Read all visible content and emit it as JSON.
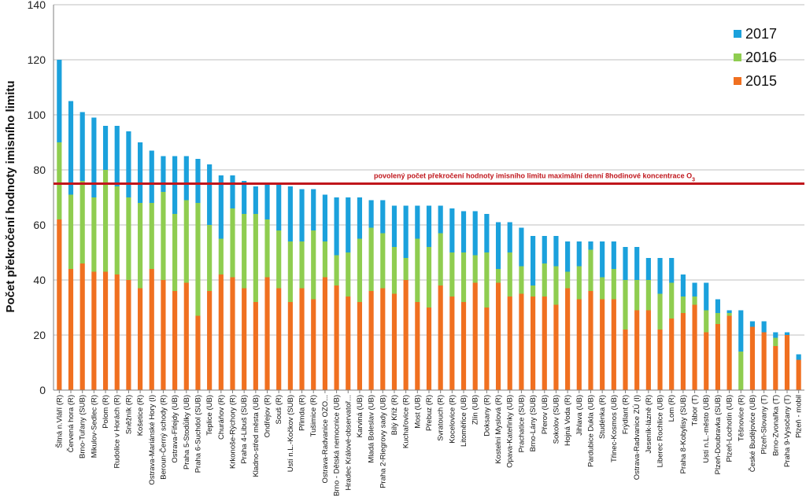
{
  "chart_data": {
    "type": "bar",
    "stacked": true,
    "ylabel": "Počet překročení hodnoty imisního limitu",
    "ylim": [
      0,
      140
    ],
    "yticks": [
      0,
      20,
      40,
      60,
      80,
      100,
      120,
      140
    ],
    "grid": true,
    "legend_position": "top-right",
    "categories": [
      "Šitná n.Vláří (R)",
      "Červená hora (R)",
      "Brno-Tuřany (SUB)",
      "Mikulov-Sedlec (R)",
      "Polom (R)",
      "Rudolice v Horách (R)",
      "Sněžník (R)",
      "Košetice (R)",
      "Ostrava-Mariánské Hory (I)",
      "Beroun-Černý schody (R)",
      "Ostrava-Fifejdy (UB)",
      "Praha 5-Stodůlky (UB)",
      "Praha 6-Suchdol (SUB)",
      "Teplice (UB)",
      "Churáňov (R)",
      "Krkonoše-Rýchory (R)",
      "Praha 4-Libuš (SUB)",
      "Kladno-střed města (UB)",
      "Ondřejov (R)",
      "Souš (R)",
      "Ustí n.L.-Kočkov (SUB)",
      "Přimda (R)",
      "Tušimice (R)",
      "Ostrava-Radvanice OZO...",
      "Brno - Dětská nemocnice (UB)",
      "Hradec Králové-observatoř...",
      "Karviná (UB)",
      "Mladá Boleslav (UB)",
      "Praha 2-Riegrovy sady (UB)",
      "Bílý Kříž (R)",
      "Kuchařovice (R)",
      "Most (UB)",
      "Přebuz (R)",
      "Svratouch (R)",
      "Kocelovice (R)",
      "Litoměřice (UB)",
      "Zlín (UB)",
      "Doksany (R)",
      "Kostelní Myslová (R)",
      "Opava-Kateřinky (UB)",
      "Prachatice (SUB)",
      "Brno-Lány (SUB)",
      "Přerov (UB)",
      "Sokolov (SUB)",
      "Hojná Voda (R)",
      "Jihlava (UB)",
      "Pardubice Dukla (UB)",
      "Studénka (R)",
      "Třinec-Kosmos (UB)",
      "Frýdlant (R)",
      "Ostrava-Radvanice ZÚ (I)",
      "Jeseník-lázně (R)",
      "Liberec Rochlice (UB)",
      "Lom (R)",
      "Praha 8-Kobylisy (SUB)",
      "Tábor (T)",
      "Ustí n.L.-město (UB)",
      "Plzeň-Doubravka (SUB)",
      "Plzeň-Lochotín (UB)",
      "Těšnovice (R)",
      "České Budějovice (UB)",
      "Plzeň-Slovany (T)",
      "Brno-Zvonařka (T)",
      "Praha 9-Vysočany (T)",
      "Plzeň - mobil"
    ],
    "series": [
      {
        "name": "2015",
        "color": "#f07020",
        "values": [
          62,
          44,
          46,
          43,
          43,
          42,
          40,
          37,
          44,
          40,
          36,
          39,
          27,
          36,
          42,
          41,
          37,
          32,
          41,
          37,
          32,
          37,
          33,
          41,
          38,
          34,
          32,
          36,
          37,
          35,
          40,
          32,
          30,
          38,
          34,
          32,
          39,
          30,
          39,
          34,
          35,
          34,
          34,
          31,
          37,
          33,
          36,
          33,
          33,
          22,
          29,
          29,
          22,
          26,
          28,
          31,
          21,
          24,
          27,
          0,
          23,
          21,
          16,
          20,
          11
        ]
      },
      {
        "name": "2016",
        "color": "#8fcd50",
        "values": [
          28,
          27,
          30,
          27,
          37,
          32,
          30,
          31,
          24,
          32,
          28,
          30,
          41,
          24,
          13,
          25,
          27,
          32,
          21,
          21,
          22,
          17,
          25,
          13,
          11,
          16,
          23,
          23,
          20,
          17,
          8,
          23,
          22,
          19,
          16,
          18,
          10,
          20,
          5,
          16,
          10,
          4,
          12,
          14,
          6,
          12,
          15,
          8,
          11,
          18,
          11,
          11,
          13,
          13,
          6,
          3,
          8,
          4,
          1,
          14,
          0,
          0,
          3,
          0,
          0
        ]
      },
      {
        "name": "2017",
        "color": "#1ba1dc",
        "values": [
          30,
          34,
          25,
          29,
          16,
          22,
          24,
          22,
          19,
          13,
          21,
          16,
          16,
          22,
          23,
          12,
          12,
          10,
          13,
          17,
          20,
          19,
          15,
          17,
          21,
          20,
          15,
          10,
          12,
          15,
          19,
          12,
          15,
          10,
          16,
          15,
          16,
          14,
          17,
          11,
          14,
          18,
          10,
          11,
          11,
          9,
          3,
          13,
          10,
          12,
          12,
          8,
          13,
          9,
          8,
          5,
          10,
          5,
          1,
          15,
          2,
          4,
          2,
          1,
          2
        ]
      }
    ],
    "limit_line": {
      "value": 75,
      "color": "#c0161c",
      "label": "povolený počet překročení hodnoty imisního limitu maximální denní 8hodinové koncentrace O",
      "label_subscript": "3"
    }
  }
}
